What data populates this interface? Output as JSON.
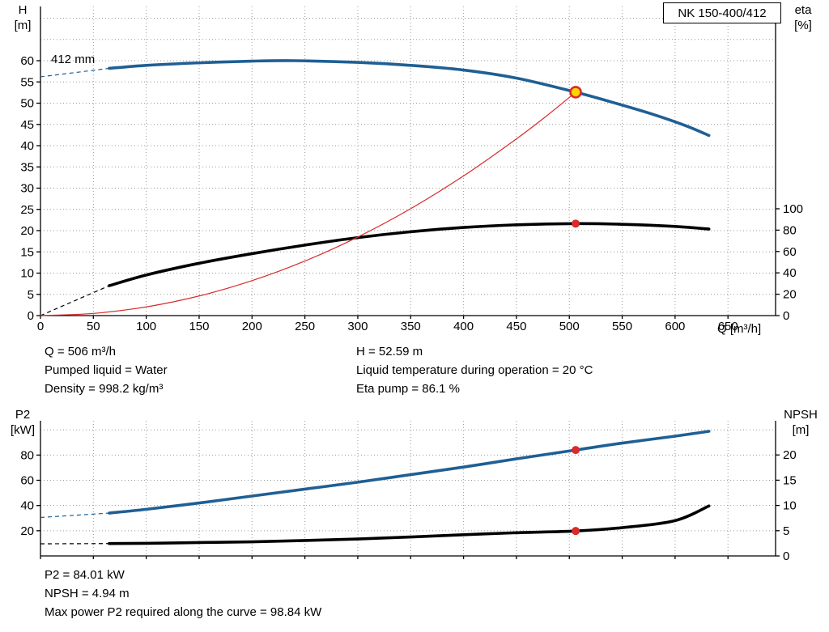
{
  "model_box": "NK 150-400/412",
  "impeller_label": "412 mm",
  "colors": {
    "curve_blue": "#1f5f94",
    "curve_black": "#000000",
    "curve_red": "#d92b2b",
    "duty_yellow": "#ffd400",
    "grid": "#999999"
  },
  "axis_titles": {
    "h": "H",
    "h_unit": "[m]",
    "eta": "eta",
    "eta_unit": "[%]",
    "q": "Q [m³/h]",
    "p2": "P2",
    "p2_unit": "[kW]",
    "npsh": "NPSH",
    "npsh_unit": "[m]"
  },
  "info_top": {
    "q": "Q = 506 m³/h",
    "liquid": "Pumped liquid = Water",
    "density": "Density = 998.2 kg/m³",
    "h": "H = 52.59 m",
    "temperature": "Liquid temperature during operation = 20 °C",
    "eta": "Eta pump = 86.1 %"
  },
  "info_bottom": {
    "p2": "P2 = 84.01 kW",
    "npsh": "NPSH = 4.94 m",
    "max_power": "Max power P2 required along the curve = 98.84 kW"
  },
  "chart_data": [
    {
      "type": "line",
      "name": "qh-eta",
      "x_label": "Q [m³/h]",
      "y_left_label": "H [m]",
      "y_right_label": "eta [%]",
      "x_range": [
        0,
        695
      ],
      "y_left_range": [
        0,
        72.8
      ],
      "y_right_range": [
        0,
        100
      ],
      "x_ticks": [
        0,
        50,
        100,
        150,
        200,
        250,
        300,
        350,
        400,
        450,
        500,
        550,
        600,
        650
      ],
      "y_left_ticks": [
        0,
        5,
        10,
        15,
        20,
        25,
        30,
        35,
        40,
        45,
        50,
        55,
        60
      ],
      "y_right_ticks": [
        0,
        20,
        40,
        60,
        80,
        100
      ],
      "series": [
        {
          "name": "head-412mm",
          "axis": "left",
          "color": "curve_blue",
          "width": 3.6,
          "lead": [
            [
              0,
              56.2
            ],
            [
              65,
              58.2
            ]
          ],
          "points": [
            [
              65,
              58.2
            ],
            [
              100,
              58.9
            ],
            [
              150,
              59.5
            ],
            [
              200,
              59.9
            ],
            [
              240,
              60.0
            ],
            [
              300,
              59.6
            ],
            [
              350,
              58.9
            ],
            [
              400,
              57.8
            ],
            [
              450,
              55.9
            ],
            [
              506,
              52.59
            ],
            [
              545,
              49.9
            ],
            [
              580,
              47.3
            ],
            [
              610,
              44.7
            ],
            [
              632,
              42.4
            ]
          ]
        },
        {
          "name": "efficiency",
          "axis": "right",
          "color": "curve_black",
          "width": 3.6,
          "lead": [
            [
              0,
              0
            ],
            [
              65,
              28
            ]
          ],
          "points": [
            [
              65,
              28
            ],
            [
              100,
              38
            ],
            [
              150,
              49
            ],
            [
              200,
              58
            ],
            [
              250,
              66
            ],
            [
              300,
              73
            ],
            [
              350,
              78.5
            ],
            [
              400,
              82.5
            ],
            [
              450,
              85
            ],
            [
              506,
              86.1
            ],
            [
              550,
              85.5
            ],
            [
              600,
              83.5
            ],
            [
              632,
              81
            ]
          ]
        },
        {
          "name": "system-curve",
          "axis": "left",
          "color": "curve_red",
          "width": 1.2,
          "points": [
            [
              0,
              0
            ],
            [
              50,
              0.51
            ],
            [
              100,
              2.05
            ],
            [
              150,
              4.62
            ],
            [
              200,
              8.22
            ],
            [
              250,
              12.84
            ],
            [
              300,
              18.49
            ],
            [
              350,
              25.16
            ],
            [
              400,
              32.87
            ],
            [
              450,
              41.6
            ],
            [
              480,
              47.3
            ],
            [
              506,
              52.59
            ]
          ]
        }
      ],
      "duty_points": [
        {
          "name": "qh",
          "axis": "left",
          "q": 506,
          "value": 52.59,
          "style": "ring"
        },
        {
          "name": "eta",
          "axis": "right",
          "q": 506,
          "value": 86.1,
          "style": "dot"
        }
      ]
    },
    {
      "type": "line",
      "name": "p2-npsh",
      "x_label": "Q [m³/h]",
      "y_left_label": "P2 [kW]",
      "y_right_label": "NPSH [m]",
      "x_range": [
        0,
        695
      ],
      "y_left_range": [
        0,
        107
      ],
      "y_right_range": [
        0,
        26.8
      ],
      "x_ticks": [
        0,
        50,
        100,
        150,
        200,
        250,
        300,
        350,
        400,
        450,
        500,
        550,
        600,
        650
      ],
      "y_left_ticks": [
        20,
        40,
        60,
        80
      ],
      "y_right_ticks": [
        0,
        5,
        10,
        15,
        20
      ],
      "series": [
        {
          "name": "p2-power",
          "axis": "left",
          "color": "curve_blue",
          "width": 3.6,
          "lead": [
            [
              0,
              30.5
            ],
            [
              65,
              34
            ]
          ],
          "points": [
            [
              65,
              34
            ],
            [
              100,
              37
            ],
            [
              150,
              42
            ],
            [
              200,
              47.5
            ],
            [
              250,
              53
            ],
            [
              300,
              58.5
            ],
            [
              350,
              64.5
            ],
            [
              400,
              70.5
            ],
            [
              450,
              77
            ],
            [
              506,
              84.01
            ],
            [
              550,
              89.5
            ],
            [
              600,
              95
            ],
            [
              632,
              98.84
            ]
          ]
        },
        {
          "name": "npsh",
          "axis": "right",
          "color": "curve_black",
          "width": 3.6,
          "lead": [
            [
              0,
              2.4
            ],
            [
              65,
              2.45
            ]
          ],
          "points": [
            [
              65,
              2.45
            ],
            [
              100,
              2.5
            ],
            [
              150,
              2.65
            ],
            [
              200,
              2.8
            ],
            [
              250,
              3.05
            ],
            [
              300,
              3.35
            ],
            [
              350,
              3.75
            ],
            [
              400,
              4.2
            ],
            [
              450,
              4.6
            ],
            [
              506,
              4.94
            ],
            [
              550,
              5.6
            ],
            [
              600,
              7.0
            ],
            [
              632,
              9.9
            ]
          ]
        }
      ],
      "duty_points": [
        {
          "name": "p2",
          "axis": "left",
          "q": 506,
          "value": 84.01,
          "style": "dot"
        },
        {
          "name": "npsh",
          "axis": "right",
          "q": 506,
          "value": 4.94,
          "style": "dot"
        }
      ]
    }
  ]
}
